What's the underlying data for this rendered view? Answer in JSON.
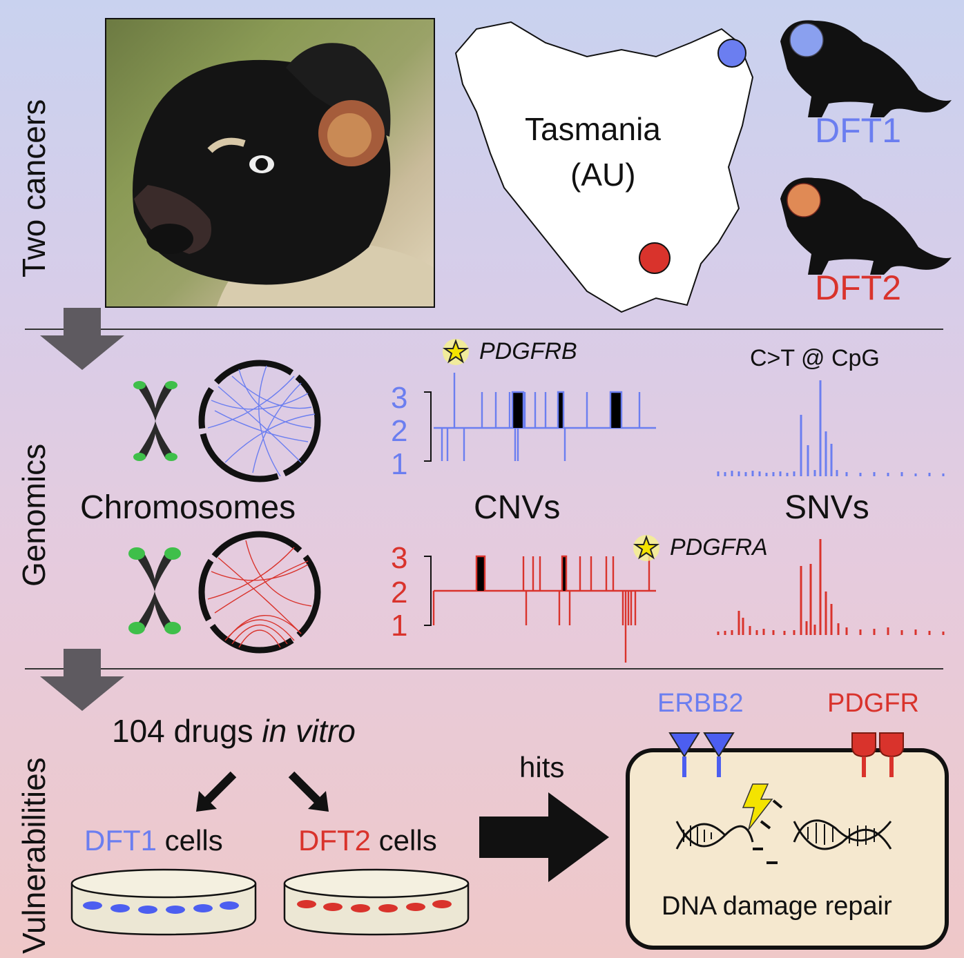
{
  "sections": {
    "top": "Two cancers",
    "middle": "Genomics",
    "bottom": "Vulnerabilities"
  },
  "map": {
    "title": "Tasmania",
    "subtitle": "(AU)"
  },
  "tumors": {
    "dft1": "DFT1",
    "dft2": "DFT2"
  },
  "genomics": {
    "chromosomes_label": "Chromosomes",
    "cnv_label": "CNVs",
    "snv_label": "SNVs",
    "snv_caption": "C>T @ CpG",
    "gene_dft1": "PDGFRB",
    "gene_dft2": "PDGFRA",
    "cnv_ticks": [
      "3",
      "2",
      "1"
    ]
  },
  "vulnerabilities": {
    "drugs_prefix": "104 drugs ",
    "drugs_italic": "in vitro",
    "dft1_cells_tag": "DFT1",
    "dft2_cells_tag": "DFT2",
    "cells_word": " cells",
    "hits": "hits",
    "receptor1": "ERBB2",
    "receptor2": "PDGFR",
    "repair": "DNA damage repair"
  },
  "colors": {
    "dft1": "#6b7ef0",
    "dft2": "#d9332c"
  }
}
